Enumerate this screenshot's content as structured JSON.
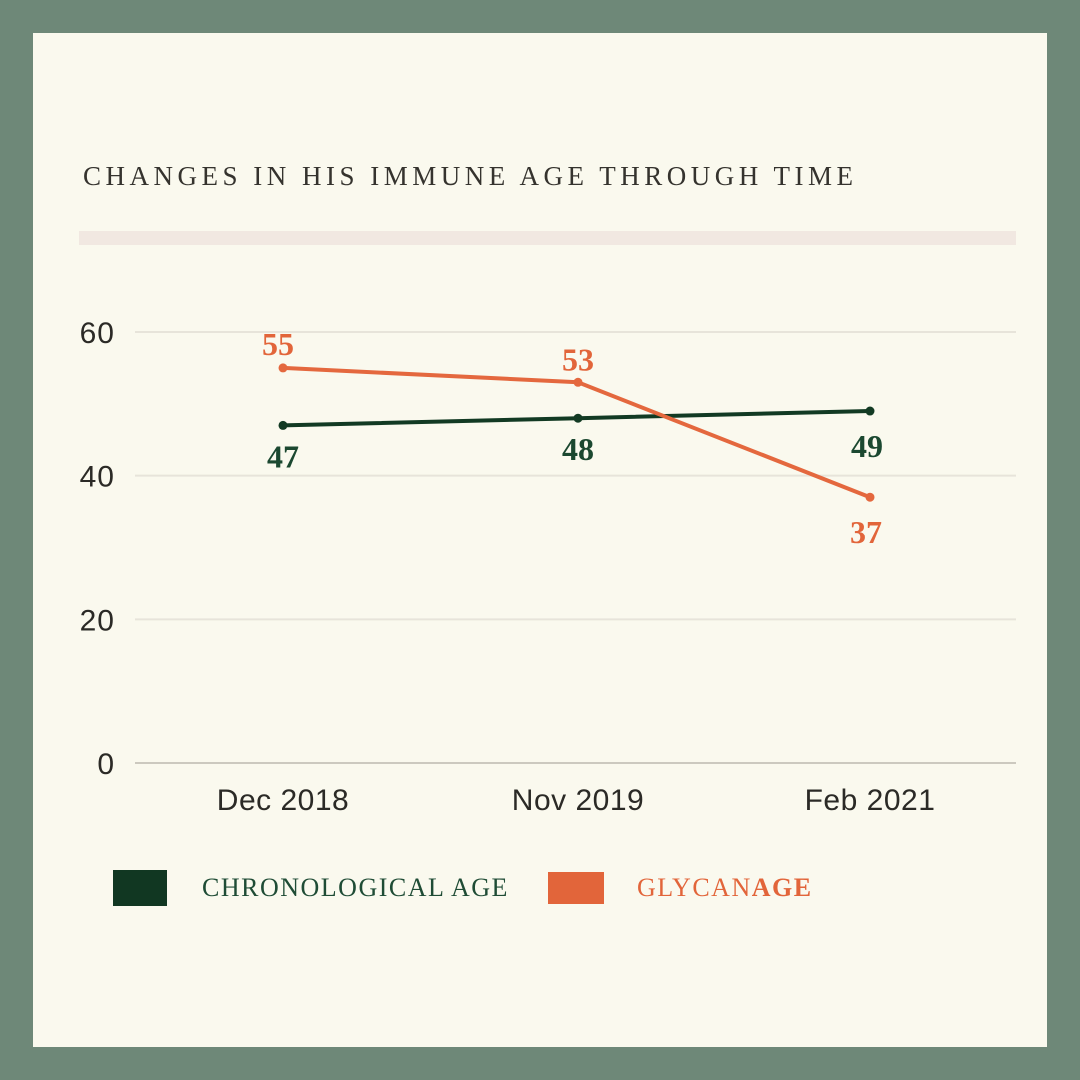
{
  "title": "CHANGES IN HIS IMMUNE AGE THROUGH TIME",
  "colors": {
    "page_border": "#6e8878",
    "card_bg": "#faf9ee",
    "divider": "#f1e8e1",
    "title_text": "#35332e",
    "tick_text": "#2b2a26",
    "gridline": "#e7e4da",
    "axis_line": "#ccc9bf",
    "chronological_green": "#123a23",
    "glycan_orange": "#e4683e"
  },
  "chart_data": {
    "type": "line",
    "title": "CHANGES IN HIS IMMUNE AGE THROUGH TIME",
    "categories": [
      "Dec 2018",
      "Nov 2019",
      "Feb 2021"
    ],
    "series": [
      {
        "name": "CHRONOLOGICAL AGE",
        "values": [
          47,
          48,
          49
        ],
        "color": "#123a23",
        "label_color": "#1b4830",
        "label_offsets": [
          [
            0,
            42
          ],
          [
            0,
            42
          ],
          [
            -3,
            46
          ]
        ]
      },
      {
        "name": "GLYCANAGE",
        "values": [
          55,
          53,
          37
        ],
        "color": "#e4683e",
        "label_color": "#e2653a",
        "label_offsets": [
          [
            -5,
            -13
          ],
          [
            0,
            -12
          ],
          [
            -4,
            46
          ]
        ]
      }
    ],
    "yticks": [
      0,
      20,
      40,
      60
    ],
    "ylim": [
      0,
      62
    ],
    "xlabel": "",
    "ylabel": "",
    "grid": true,
    "legend_position": "bottom"
  },
  "legend": {
    "items": [
      {
        "swatch_color": "#113722",
        "label": "CHRONOLOGICAL AGE",
        "text_color": "#1f4c35"
      },
      {
        "swatch_color": "#e2653a",
        "label": "GLYCANAGE",
        "label_prefix": "GLYCAN",
        "label_bold": "AGE",
        "text_color": "#e2653a"
      }
    ]
  }
}
